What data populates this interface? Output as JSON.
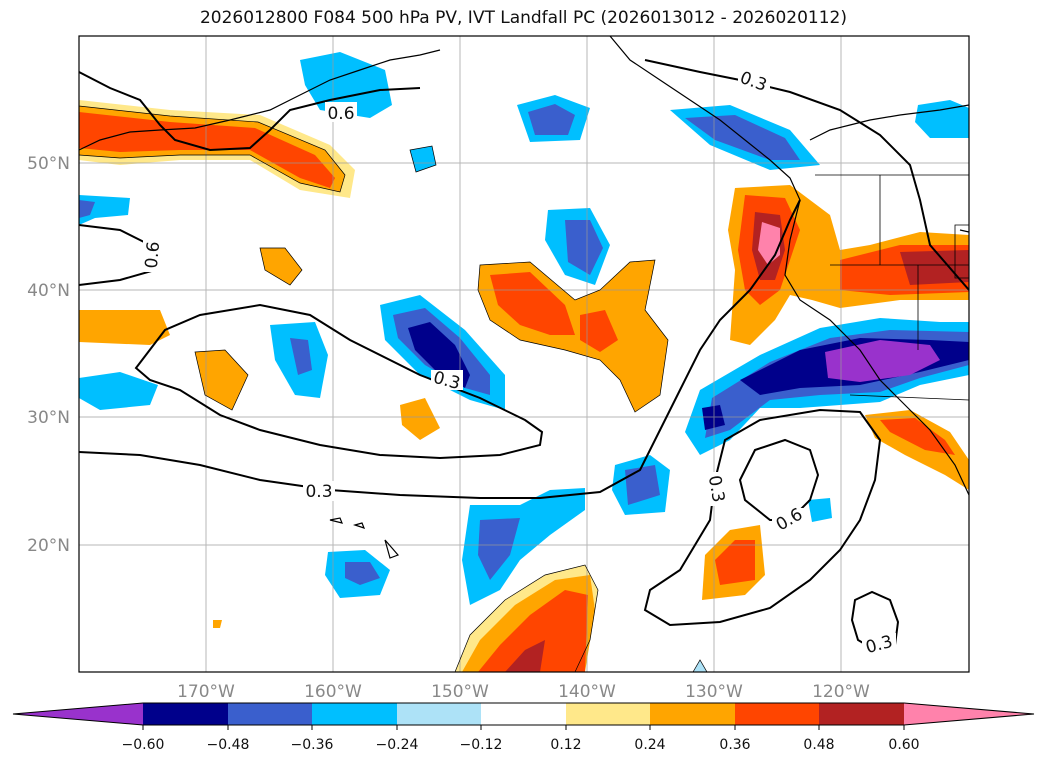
{
  "title": "2026012800 F084 500 hPa PV, IVT Landfall PC (2026013012 - 2026020112)",
  "map": {
    "lat_labels": [
      "50°N",
      "40°N",
      "30°N",
      "20°N"
    ],
    "lon_labels": [
      "170°W",
      "160°W",
      "150°W",
      "140°W",
      "130°W",
      "120°W"
    ],
    "contour_labels": [
      "0.3",
      "0.6",
      "0.6",
      "0.3",
      "0.3",
      "0.3",
      "0.6",
      "0.3"
    ]
  },
  "colorbar": {
    "ticks": [
      "−0.60",
      "−0.48",
      "−0.36",
      "−0.24",
      "−0.12",
      "0.12",
      "0.24",
      "0.36",
      "0.48",
      "0.60"
    ],
    "colors": [
      "#9932CC",
      "#00008B",
      "#3A5FCD",
      "#00BFFF",
      "#ADE2F7",
      "#FFFFFF",
      "#FFE88A",
      "#FFA500",
      "#FF4500",
      "#B22222",
      "#FF82AB"
    ]
  }
}
